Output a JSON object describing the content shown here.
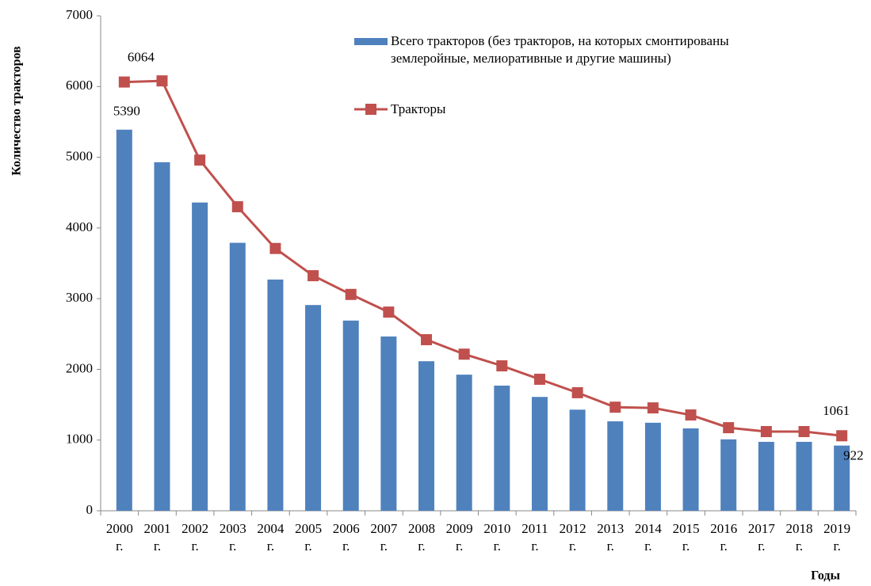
{
  "chart_data": {
    "type": "bar_line",
    "y_axis_label": "Количество тракторов",
    "x_axis_label": "Годы",
    "categories": [
      "2000 г.",
      "2001 г.",
      "2002 г.",
      "2003 г.",
      "2004 г.",
      "2005 г.",
      "2006 г.",
      "2007 г.",
      "2008 г.",
      "2009 г.",
      "2010 г.",
      "2011 г.",
      "2012 г.",
      "2013 г.",
      "2014 г.",
      "2015 г.",
      "2016 г.",
      "2017 г.",
      "2018 г.",
      "2019 г."
    ],
    "series": [
      {
        "name": "Всего тракторов (без тракторов, на которых смонтированы землеройные, мелиоративные и другие машины)",
        "type": "bar",
        "color": "#4f81bd",
        "values": [
          5390,
          4930,
          4360,
          3790,
          3270,
          2910,
          2690,
          2465,
          2115,
          1925,
          1770,
          1610,
          1430,
          1265,
          1245,
          1165,
          1010,
          975,
          975,
          922
        ],
        "value_labels": [
          "5390",
          null,
          null,
          null,
          null,
          null,
          null,
          null,
          null,
          null,
          null,
          null,
          null,
          null,
          null,
          null,
          null,
          null,
          null,
          "922"
        ]
      },
      {
        "name": "Тракторы",
        "type": "line",
        "color": "#c0504d",
        "values": [
          6064,
          6080,
          4960,
          4300,
          3710,
          3325,
          3060,
          2810,
          2420,
          2215,
          2050,
          1860,
          1670,
          1465,
          1455,
          1355,
          1175,
          1120,
          1120,
          1061
        ],
        "value_labels": [
          "6064",
          null,
          null,
          null,
          null,
          null,
          null,
          null,
          null,
          null,
          null,
          null,
          null,
          null,
          null,
          null,
          null,
          null,
          null,
          "1061"
        ]
      }
    ],
    "ylim": [
      0,
      7000
    ],
    "yticks": [
      0,
      1000,
      2000,
      3000,
      4000,
      5000,
      6000,
      7000
    ],
    "grid": false,
    "legend": "top-right"
  }
}
